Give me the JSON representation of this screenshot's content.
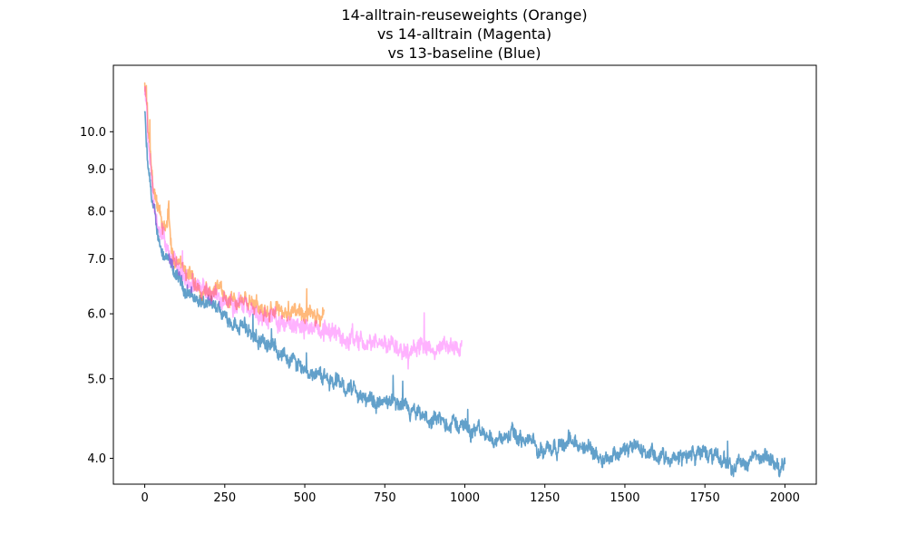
{
  "chart_data": {
    "type": "line",
    "title_lines": [
      "14-alltrain-reuseweights (Orange)",
      "vs 14-alltrain (Magenta)",
      "vs 13-baseline (Blue)"
    ],
    "xlabel": "",
    "ylabel": "",
    "xlim": [
      -98,
      2098
    ],
    "ylim": [
      3.72,
      12.05
    ],
    "yscale": "log",
    "grid": false,
    "x_ticks": [
      0,
      250,
      500,
      750,
      1000,
      1250,
      1500,
      1750,
      2000
    ],
    "x_tick_labels": [
      "0",
      "250",
      "500",
      "750",
      "1000",
      "1250",
      "1500",
      "1750",
      "2000"
    ],
    "y_ticks": [
      4.0,
      5.0,
      6.0,
      7.0,
      8.0,
      9.0,
      10.0
    ],
    "y_tick_labels": [
      "4.0",
      "5.0",
      "6.0",
      "7.0",
      "8.0",
      "9.0",
      "10.0"
    ],
    "series": [
      {
        "color": "#1f77b4",
        "opacity": 0.7,
        "noise": 0.09,
        "x": [
          0,
          5,
          10,
          20,
          30,
          40,
          50,
          60,
          80,
          100,
          125,
          150,
          200,
          250,
          300,
          350,
          400,
          450,
          500,
          550,
          600,
          650,
          700,
          750,
          800,
          850,
          900,
          950,
          1000,
          1050,
          1100,
          1150,
          1200,
          1250,
          1300,
          1350,
          1400,
          1450,
          1500,
          1550,
          1600,
          1650,
          1700,
          1750,
          1800,
          1850,
          1900,
          1950,
          2000
        ],
        "y": [
          10.6,
          9.6,
          9.0,
          8.4,
          7.9,
          7.5,
          7.3,
          7.1,
          6.85,
          6.65,
          6.45,
          6.3,
          6.12,
          5.97,
          5.8,
          5.62,
          5.47,
          5.3,
          5.15,
          5.05,
          4.95,
          4.85,
          4.7,
          4.67,
          4.6,
          4.5,
          4.43,
          4.42,
          4.38,
          4.3,
          4.22,
          4.26,
          4.18,
          4.12,
          4.18,
          4.15,
          4.08,
          4.03,
          4.1,
          4.1,
          4.0,
          3.98,
          4.05,
          4.06,
          3.98,
          3.93,
          3.99,
          3.98,
          3.9
        ]
      },
      {
        "color": "#ff7f0e",
        "opacity": 0.55,
        "noise": 0.1,
        "x": [
          0,
          5,
          10,
          20,
          30,
          40,
          50,
          60,
          70,
          75,
          80,
          90,
          100,
          125,
          150,
          200,
          250,
          300,
          350,
          400,
          450,
          500,
          530,
          560
        ],
        "y": [
          11.3,
          11.2,
          10.0,
          9.2,
          8.5,
          8.0,
          7.8,
          7.7,
          7.7,
          8.0,
          7.4,
          7.15,
          6.95,
          6.7,
          6.6,
          6.45,
          6.35,
          6.22,
          6.12,
          6.1,
          6.02,
          5.95,
          5.9,
          5.88
        ]
      },
      {
        "color": "#ff00ff",
        "opacity": 0.3,
        "noise": 0.11,
        "x": [
          0,
          5,
          10,
          20,
          30,
          40,
          50,
          60,
          75,
          90,
          100,
          125,
          150,
          200,
          250,
          300,
          350,
          400,
          450,
          500,
          550,
          600,
          650,
          700,
          750,
          800,
          850,
          900,
          950,
          990
        ],
        "y": [
          11.2,
          11.0,
          9.8,
          9.0,
          8.2,
          7.7,
          7.5,
          7.4,
          7.25,
          7.0,
          6.8,
          6.6,
          6.5,
          6.35,
          6.25,
          6.12,
          6.0,
          5.9,
          5.83,
          5.78,
          5.72,
          5.65,
          5.6,
          5.55,
          5.55,
          5.5,
          5.48,
          5.42,
          5.45,
          5.47
        ]
      }
    ]
  }
}
